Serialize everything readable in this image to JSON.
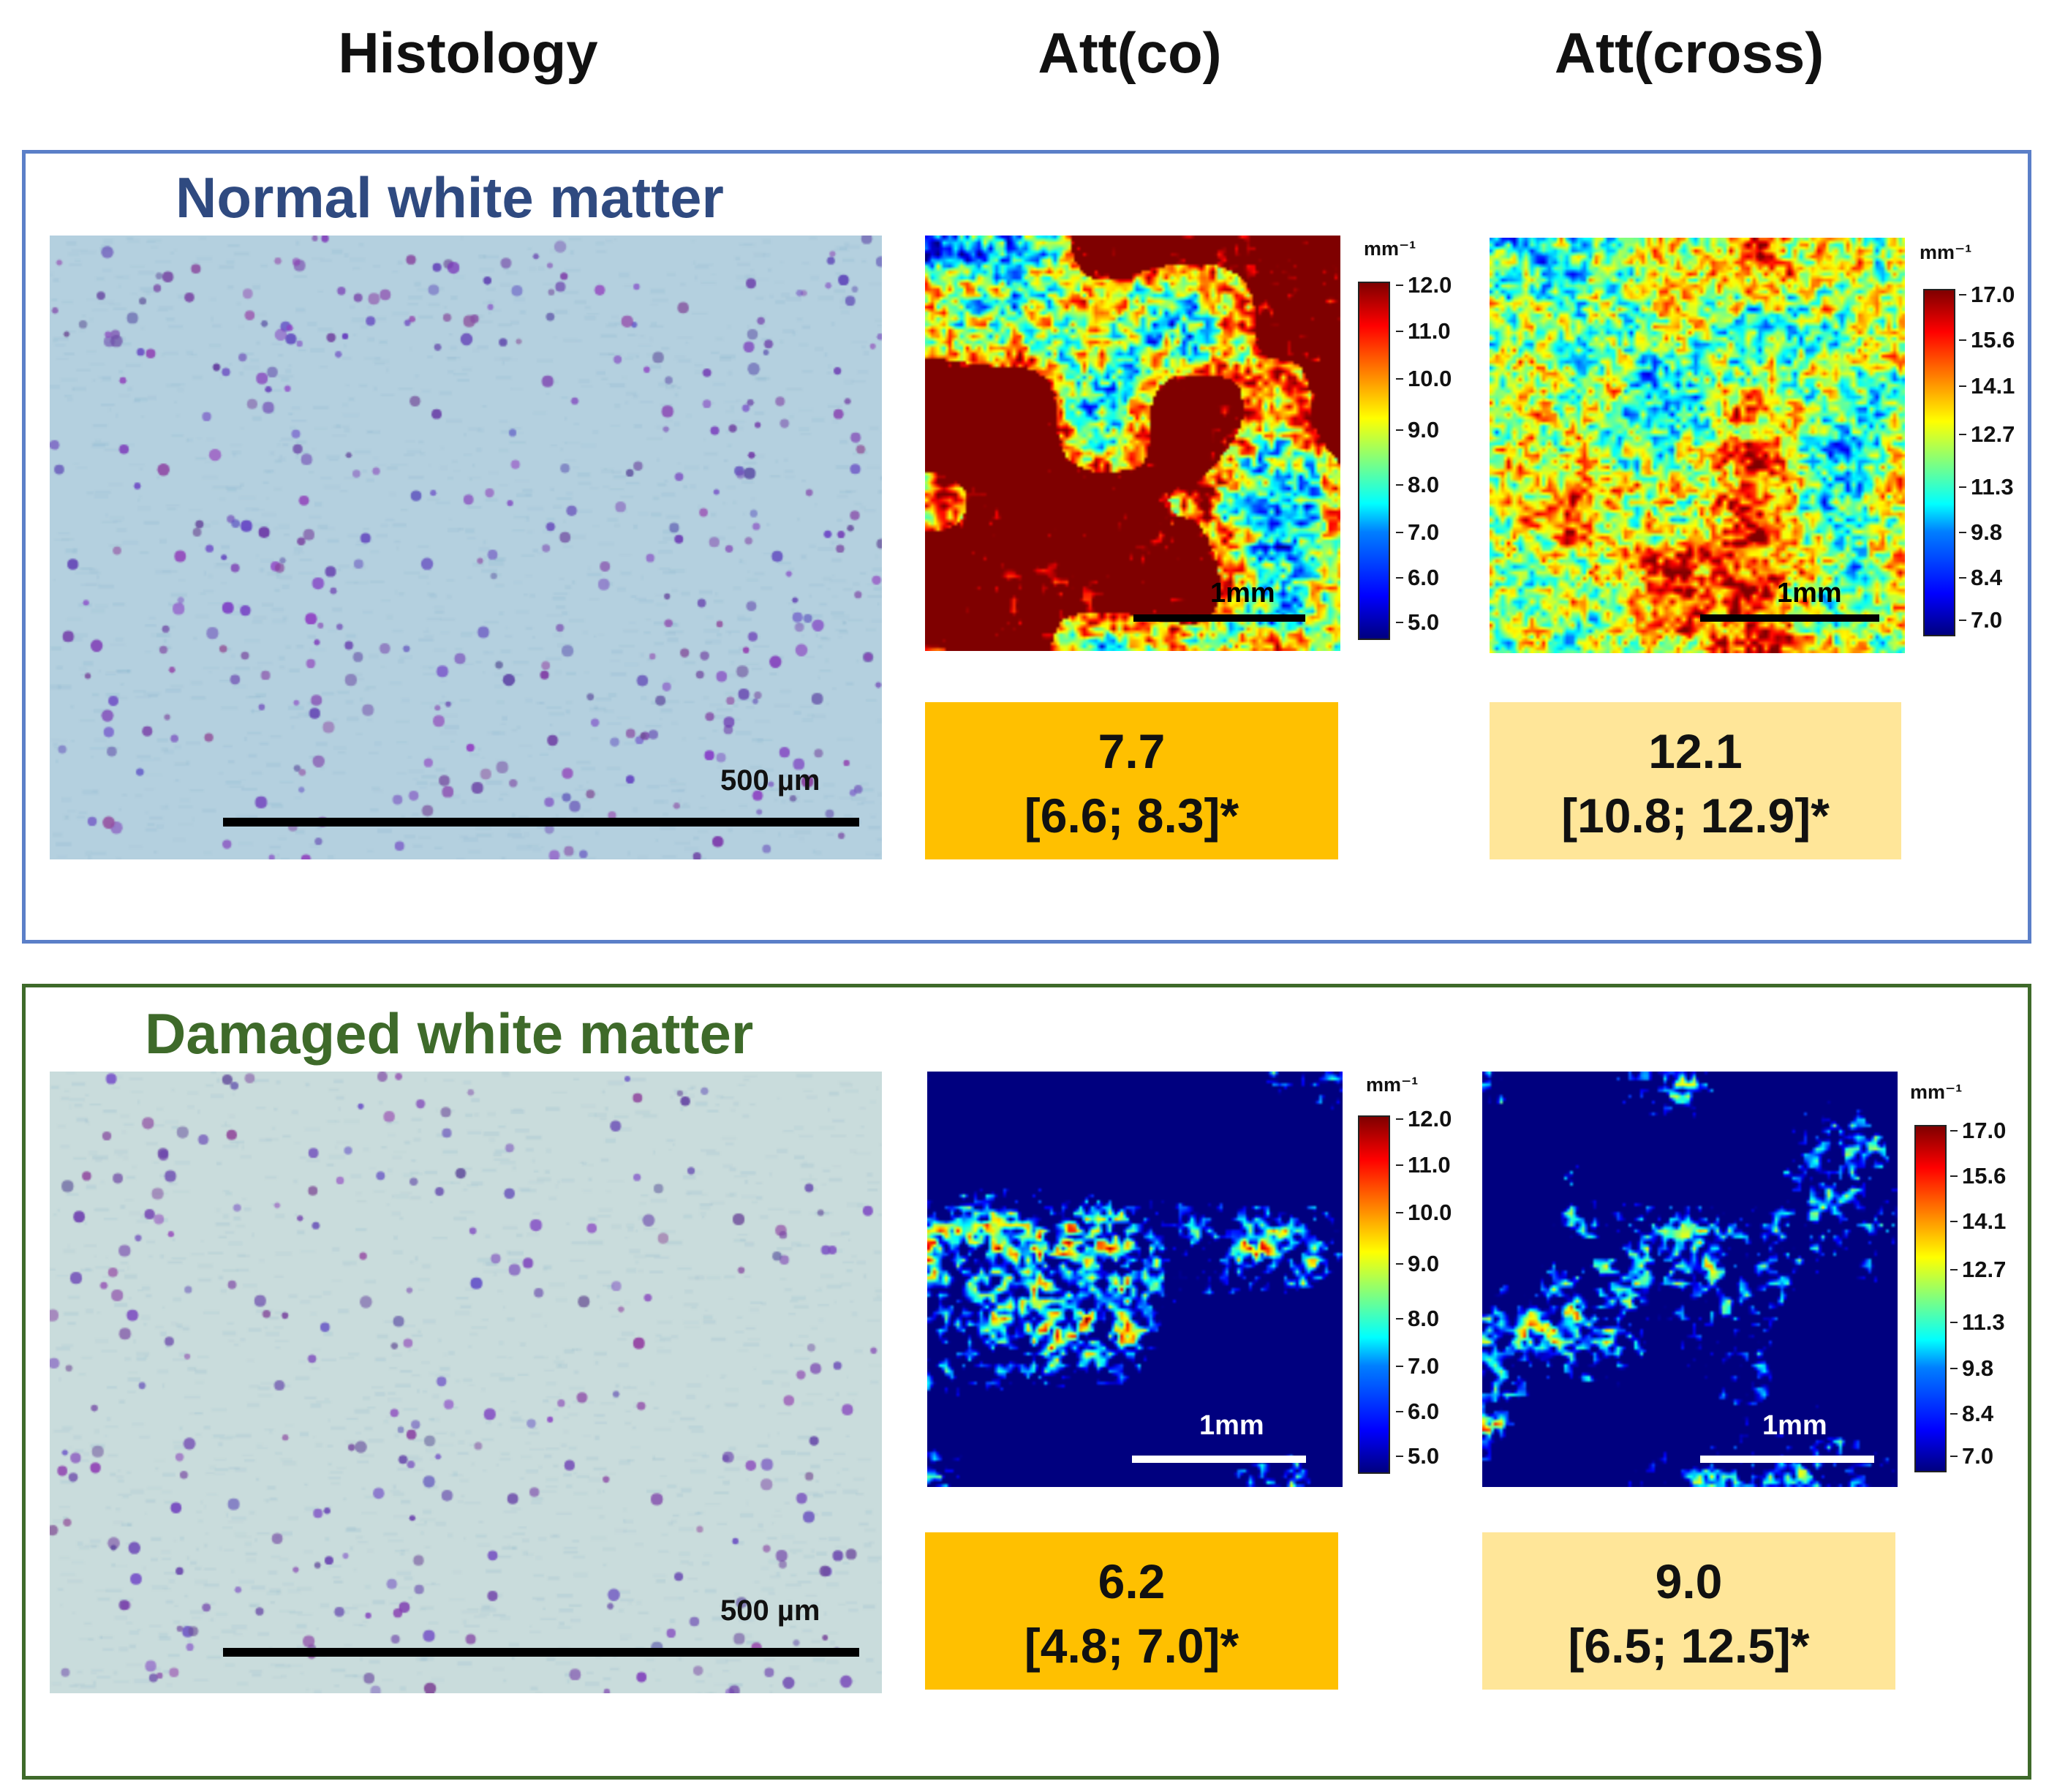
{
  "columns": {
    "histology": "Histology",
    "att_co": "Att(co)",
    "att_cross": "Att(cross)"
  },
  "panels": [
    {
      "title": "Normal white matter",
      "title_color": "#2f4a80",
      "border_color": "#5b7fc8",
      "histology_scale": "500 µm",
      "map_scale": "1mm",
      "map_scale_color": "#000000",
      "att_co": {
        "unit": "mm⁻¹",
        "ticks": [
          "12.0",
          "11.0",
          "10.0",
          "9.0",
          "8.0",
          "7.0",
          "6.0",
          "5.0"
        ],
        "value": "7.7",
        "ci": "[6.6; 8.3]*"
      },
      "att_cross": {
        "unit": "mm⁻¹",
        "ticks": [
          "17.0",
          "15.6",
          "14.1",
          "12.7",
          "11.3",
          "9.8",
          "8.4",
          "7.0"
        ],
        "value": "12.1",
        "ci": "[10.8; 12.9]*"
      }
    },
    {
      "title": "Damaged white matter",
      "title_color": "#3e6a2a",
      "border_color": "#3e6a2a",
      "histology_scale": "500 µm",
      "map_scale": "1mm",
      "map_scale_color": "#ffffff",
      "att_co": {
        "unit": "mm⁻¹",
        "ticks": [
          "12.0",
          "11.0",
          "10.0",
          "9.0",
          "8.0",
          "7.0",
          "6.0",
          "5.0"
        ],
        "value": "6.2",
        "ci": "[4.8; 7.0]*"
      },
      "att_cross": {
        "unit": "mm⁻¹",
        "ticks": [
          "17.0",
          "15.6",
          "14.1",
          "12.7",
          "11.3",
          "9.8",
          "8.4",
          "7.0"
        ],
        "value": "9.0",
        "ci": "[6.5; 12.5]*"
      }
    }
  ]
}
